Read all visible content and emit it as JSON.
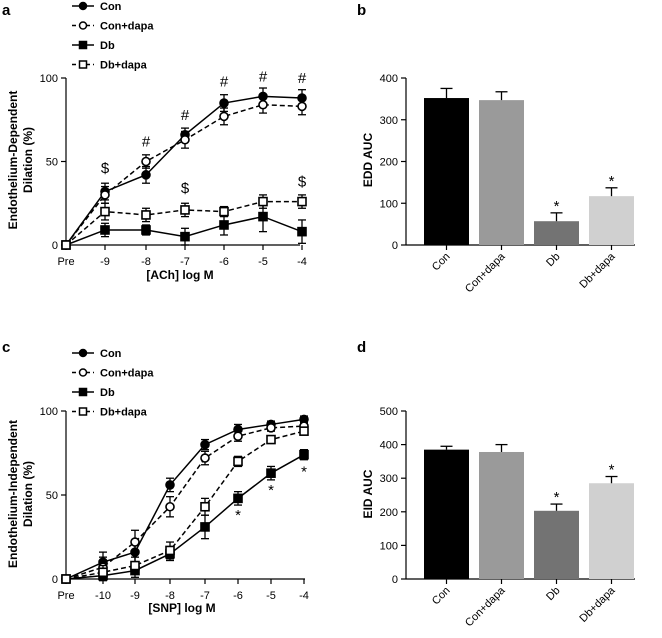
{
  "chart_data": [
    {
      "panel": "a",
      "type": "line",
      "xlabel": "[ACh] log M",
      "ylabel_line1": "Endothelium-Dependent",
      "ylabel_line2": "Dilation (%)",
      "ylim": [
        0,
        100
      ],
      "yticks": [
        "0",
        "50",
        "100"
      ],
      "categories": [
        "Pre",
        "-9",
        "-8",
        "-7",
        "-6",
        "-5",
        "-4"
      ],
      "series": [
        {
          "name": "Con",
          "marker": "circle",
          "fill": "#000000",
          "dashed": false,
          "values": [
            0,
            32,
            42,
            66,
            85,
            89,
            88
          ],
          "errors": [
            0,
            5,
            5,
            4,
            5,
            5,
            5
          ]
        },
        {
          "name": "Con+dapa",
          "marker": "circle",
          "fill": "#ffffff",
          "dashed": true,
          "values": [
            0,
            30,
            50,
            63,
            77,
            84,
            83
          ],
          "errors": [
            0,
            5,
            4,
            5,
            5,
            5,
            5
          ]
        },
        {
          "name": "Db",
          "marker": "square",
          "fill": "#000000",
          "dashed": false,
          "values": [
            0,
            9,
            9,
            5,
            12,
            17,
            8
          ],
          "errors": [
            0,
            4,
            3,
            5,
            6,
            9,
            7
          ]
        },
        {
          "name": "Db+dapa",
          "marker": "square",
          "fill": "#ffffff",
          "dashed": true,
          "values": [
            0,
            20,
            18,
            21,
            20,
            26,
            26
          ],
          "errors": [
            0,
            5,
            4,
            4,
            3,
            4,
            4
          ]
        }
      ],
      "annotations": [
        {
          "text": "$",
          "x": "-9",
          "y": 43
        },
        {
          "text": "#",
          "x": "-8",
          "y": 59
        },
        {
          "text": "#",
          "x": "-7",
          "y": 75
        },
        {
          "text": "$",
          "x": "-7",
          "y": 31
        },
        {
          "text": "#",
          "x": "-6",
          "y": 95
        },
        {
          "text": "#",
          "x": "-5",
          "y": 98
        },
        {
          "text": "#",
          "x": "-4",
          "y": 97
        },
        {
          "text": "$",
          "x": "-4",
          "y": 35
        }
      ]
    },
    {
      "panel": "b",
      "type": "bar",
      "ylabel": "EDD AUC",
      "ylim": [
        0,
        400
      ],
      "yticks": [
        "0",
        "100",
        "200",
        "300",
        "400"
      ],
      "categories": [
        "Con",
        "Con+dapa",
        "Db",
        "Db+dapa"
      ],
      "colors": [
        "#000000",
        "#9a9a9a",
        "#737373",
        "#d0d0d0"
      ],
      "values": [
        352,
        347,
        57,
        117
      ],
      "errors": [
        23,
        20,
        20,
        20
      ],
      "stars": [
        "",
        "",
        "*",
        "*"
      ]
    },
    {
      "panel": "c",
      "type": "line",
      "xlabel": "[SNP] log M",
      "ylabel_line1": "Endothelium-Independent",
      "ylabel_line2": "Dilation (%)",
      "ylim": [
        0,
        100
      ],
      "yticks": [
        "0",
        "50",
        "100"
      ],
      "categories": [
        "Pre",
        "-10",
        "-9",
        "-8",
        "-7",
        "-6",
        "-5",
        "-4"
      ],
      "series": [
        {
          "name": "Con",
          "marker": "circle",
          "fill": "#000000",
          "dashed": false,
          "values": [
            0,
            10,
            16,
            56,
            80,
            89,
            92,
            95
          ],
          "errors": [
            0,
            6,
            7,
            4,
            3,
            3,
            2,
            2
          ]
        },
        {
          "name": "Con+dapa",
          "marker": "circle",
          "fill": "#ffffff",
          "dashed": true,
          "values": [
            0,
            7,
            22,
            43,
            72,
            85,
            90,
            91
          ],
          "errors": [
            0,
            6,
            7,
            6,
            4,
            3,
            2,
            2
          ]
        },
        {
          "name": "Db",
          "marker": "square",
          "fill": "#000000",
          "dashed": false,
          "values": [
            0,
            2,
            5,
            15,
            31,
            48,
            63,
            74
          ],
          "errors": [
            0,
            3,
            4,
            4,
            7,
            4,
            4,
            3
          ]
        },
        {
          "name": "Db+dapa",
          "marker": "square",
          "fill": "#ffffff",
          "dashed": true,
          "values": [
            0,
            4,
            8,
            17,
            43,
            70,
            83,
            88
          ],
          "errors": [
            0,
            4,
            5,
            5,
            5,
            3,
            2,
            2
          ]
        }
      ],
      "annotations": [
        {
          "text": "*",
          "x": "-6",
          "y": 35
        },
        {
          "text": "*",
          "x": "-5",
          "y": 50
        },
        {
          "text": "*",
          "x": "-4",
          "y": 61
        }
      ]
    },
    {
      "panel": "d",
      "type": "bar",
      "ylabel": "EID AUC",
      "ylim": [
        0,
        500
      ],
      "yticks": [
        "0",
        "100",
        "200",
        "300",
        "400",
        "500"
      ],
      "categories": [
        "Con",
        "Con+dapa",
        "Db",
        "Db+dapa"
      ],
      "colors": [
        "#000000",
        "#9a9a9a",
        "#737373",
        "#d0d0d0"
      ],
      "values": [
        385,
        378,
        203,
        285
      ],
      "errors": [
        10,
        22,
        20,
        20
      ],
      "stars": [
        "",
        "",
        "*",
        "*"
      ]
    }
  ]
}
